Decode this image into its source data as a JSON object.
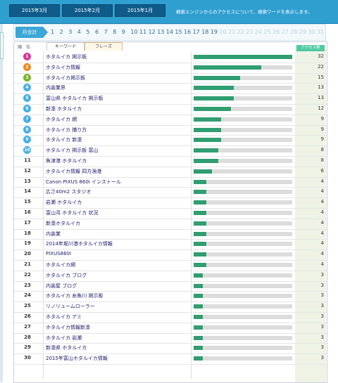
{
  "header": {
    "months": [
      "2015年3月",
      "2015年2月",
      "2015年1月"
    ],
    "description": "検索エンジンからのアクセスについて、検索ワードを表示します。"
  },
  "pager": {
    "label": "月合計",
    "days": [
      "1",
      "2",
      "3",
      "4",
      "5",
      "6",
      "7",
      "8",
      "9",
      "10",
      "11",
      "12",
      "13",
      "14",
      "15",
      "16",
      "17",
      "18",
      "19",
      "20",
      "21",
      "22",
      "23",
      "24",
      "25",
      "26",
      "27",
      "28",
      "29",
      "30",
      "31"
    ],
    "active_through": 19
  },
  "table": {
    "rank_header": "順　位",
    "tabs": [
      "キーワード",
      "フレーズ"
    ],
    "access_header": "アクセス数",
    "max": 32,
    "rows": [
      {
        "rank": "1",
        "phrase": "ホタルイカ 掲示板",
        "count": 32
      },
      {
        "rank": "2",
        "phrase": "ホタルイカ情報",
        "count": 22
      },
      {
        "rank": "3",
        "phrase": "ホタルイカ掲示板",
        "count": 15
      },
      {
        "rank": "4",
        "phrase": "内装業界",
        "count": 13
      },
      {
        "rank": "5",
        "phrase": "富山県 ホタルイカ 掲示板",
        "count": 13
      },
      {
        "rank": "6",
        "phrase": "新湊 ホタルイカ",
        "count": 12
      },
      {
        "rank": "7",
        "phrase": "ホタルイカ 網",
        "count": 9
      },
      {
        "rank": "8",
        "phrase": "ホタルイカ 捕り方",
        "count": 9
      },
      {
        "rank": "9",
        "phrase": "ホタルイカ 新湊",
        "count": 9
      },
      {
        "rank": "10",
        "phrase": "ホタルイカ 掲示板 富山",
        "count": 8
      },
      {
        "rank": "11",
        "phrase": "魚津港 ホタルイカ",
        "count": 8
      },
      {
        "rank": "12",
        "phrase": "ホタルイカ情報 四方漁港",
        "count": 6
      },
      {
        "rank": "13",
        "phrase": "Canon PIXUS 860i インストール",
        "count": 4
      },
      {
        "rank": "14",
        "phrase": "広さ40m2 スタジオ",
        "count": 4
      },
      {
        "rank": "15",
        "phrase": "岩瀬 ホタルイカ",
        "count": 4
      },
      {
        "rank": "16",
        "phrase": "富山湾 ホタルイカ 状況",
        "count": 4
      },
      {
        "rank": "17",
        "phrase": "新湊ホタルイカ",
        "count": 4
      },
      {
        "rank": "18",
        "phrase": "内装業",
        "count": 4
      },
      {
        "rank": "19",
        "phrase": "2014年堀川港ホタルイカ情報",
        "count": 4
      },
      {
        "rank": "20",
        "phrase": "PIXUS860I",
        "count": 4
      },
      {
        "rank": "21",
        "phrase": "ホタルイカ網",
        "count": 4
      },
      {
        "rank": "22",
        "phrase": "ホタルイカ ブログ",
        "count": 3
      },
      {
        "rank": "23",
        "phrase": "内装屋 ブログ",
        "count": 3
      },
      {
        "rank": "24",
        "phrase": "ホタルイカ 糸魚川 掲示板",
        "count": 3
      },
      {
        "rank": "25",
        "phrase": "リノリュームローラー",
        "count": 3
      },
      {
        "rank": "26",
        "phrase": "ホタルイカ アミ",
        "count": 3
      },
      {
        "rank": "27",
        "phrase": "ホタルイカ情報新湊",
        "count": 3
      },
      {
        "rank": "28",
        "phrase": "ホタルイカ 岩瀬",
        "count": 3
      },
      {
        "rank": "29",
        "phrase": "新湊県 ホタルイカ",
        "count": 3
      },
      {
        "rank": "30",
        "phrase": "2015年富山ホタルイカ情報",
        "count": 3
      }
    ]
  },
  "colors": {
    "badge": [
      "#d63b9a",
      "#f08a1c",
      "#7ab52b",
      "#46b0e4"
    ],
    "bar": "#2f9e71",
    "topbar": "#2f9fd0"
  }
}
